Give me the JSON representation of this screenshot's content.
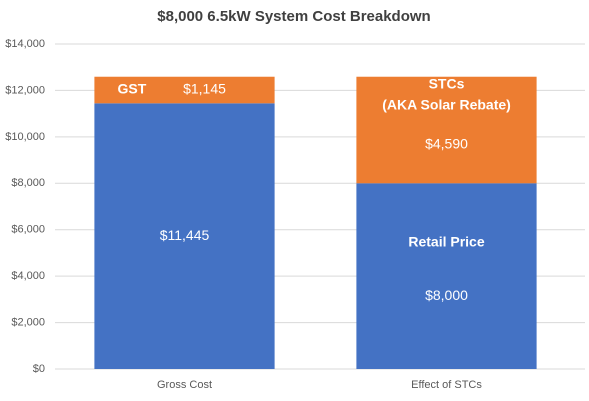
{
  "chart_data": {
    "type": "stacked-bar",
    "title": "$8,000 6.5kW System Cost Breakdown",
    "categories": [
      "Gross Cost",
      "Effect of STCs"
    ],
    "series": [
      {
        "color": "#4472c4",
        "values": [
          11445,
          8000
        ],
        "value_labels": [
          "$11,445",
          "$8,000"
        ]
      },
      {
        "color": "#ed7d31",
        "values": [
          1145,
          4590
        ],
        "value_labels": [
          "$1,145",
          "$4,590"
        ]
      }
    ],
    "annotations": [
      "GST",
      "STCs",
      "(AKA Solar Rebate)",
      "Retail Price"
    ],
    "ylim": [
      0,
      14000
    ],
    "yticks": [
      {
        "value": 0,
        "label": "$0"
      },
      {
        "value": 2000,
        "label": "$2,000"
      },
      {
        "value": 4000,
        "label": "$4,000"
      },
      {
        "value": 6000,
        "label": "$6,000"
      },
      {
        "value": 8000,
        "label": "$8,000"
      },
      {
        "value": 10000,
        "label": "$10,000"
      },
      {
        "value": 12000,
        "label": "$12,000"
      },
      {
        "value": 14000,
        "label": "$14,000"
      }
    ],
    "grid": true
  }
}
